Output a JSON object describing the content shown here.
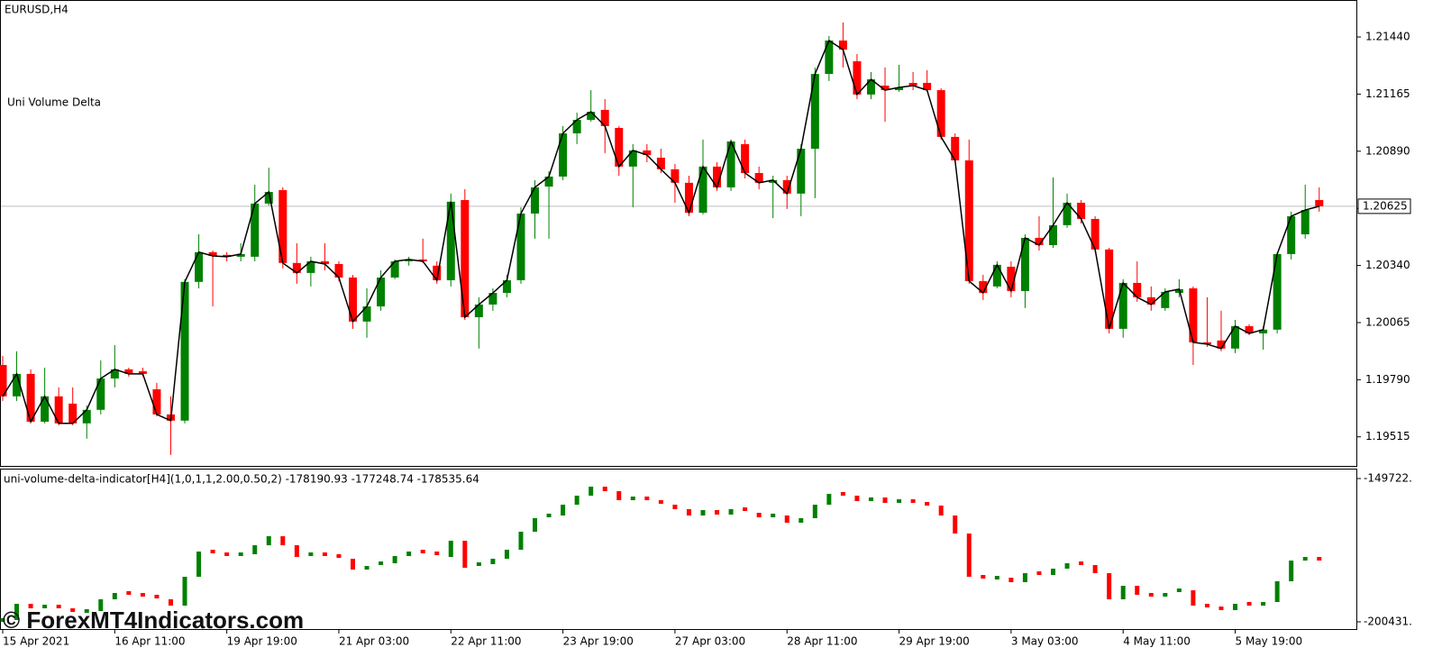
{
  "chart_data": [
    {
      "type": "candlestick",
      "title": "EURUSD,H4",
      "subtitle": "Uni Volume Delta",
      "categories": [
        "15 Apr 2021",
        null,
        null,
        null,
        null,
        null,
        null,
        null,
        "16 Apr 11:00",
        null,
        null,
        null,
        null,
        null,
        null,
        null,
        "19 Apr 19:00",
        null,
        null,
        null,
        null,
        null,
        null,
        null,
        "21 Apr 03:00",
        null,
        null,
        null,
        null,
        null,
        null,
        null,
        "22 Apr 11:00",
        null,
        null,
        null,
        null,
        null,
        null,
        null,
        "23 Apr 19:00",
        null,
        null,
        null,
        null,
        null,
        null,
        null,
        "27 Apr 03:00",
        null,
        null,
        null,
        null,
        null,
        null,
        null,
        "28 Apr 11:00",
        null,
        null,
        null,
        null,
        null,
        null,
        null,
        "29 Apr 19:00",
        null,
        null,
        null,
        null,
        null,
        null,
        null,
        "3 May 03:00",
        null,
        null,
        null,
        null,
        null,
        null,
        null,
        "4 May 11:00",
        null,
        null,
        null,
        null,
        null,
        null,
        null,
        "5 May 19:00",
        null,
        null,
        null,
        null,
        null,
        null
      ],
      "open": [
        1.19861,
        1.1971,
        1.19818,
        1.19588,
        1.1971,
        1.19675,
        1.1958,
        1.19645,
        1.19796,
        1.1984,
        1.19831,
        1.19744,
        1.19623,
        1.19593,
        1.20261,
        1.20404,
        1.20391,
        1.20382,
        1.20382,
        1.20638,
        1.20703,
        1.20352,
        1.20304,
        1.2036,
        1.20347,
        1.20282,
        1.2007,
        1.20143,
        1.20282,
        1.2036,
        1.20369,
        1.20339,
        1.20269,
        1.20655,
        1.20091,
        1.20152,
        1.20208,
        1.20269,
        1.2059,
        1.2072,
        1.20768,
        1.20976,
        1.21041,
        1.21089,
        1.21002,
        1.20816,
        1.20894,
        1.20859,
        1.20803,
        1.20738,
        1.20594,
        1.20816,
        1.20716,
        1.20924,
        1.20785,
        1.20738,
        1.20751,
        1.20686,
        1.20902,
        1.21262,
        1.21423,
        1.21323,
        1.21163,
        1.21206,
        1.21184,
        1.21219,
        1.21219,
        1.21184,
        1.20959,
        1.20846,
        1.20265,
        1.20239,
        1.20334,
        1.20217,
        1.20473,
        1.20438,
        1.20534,
        1.20642,
        1.20564,
        1.20417,
        1.20035,
        1.20256,
        1.20187,
        1.20135,
        1.20208,
        1.2023,
        1.1997,
        1.19979,
        1.1994,
        1.20048,
        1.20013,
        1.20031,
        1.20395,
        1.2049,
        1.20655
      ],
      "high": [
        1.19905,
        1.19927,
        1.1984,
        1.19848,
        1.19753,
        1.19753,
        1.19666,
        1.19883,
        1.19957,
        1.19848,
        1.19848,
        1.19775,
        1.1971,
        1.20274,
        1.2049,
        1.20412,
        1.20404,
        1.20447,
        1.20729,
        1.20811,
        1.20716,
        1.20447,
        1.20382,
        1.20447,
        1.2036,
        1.20295,
        1.2023,
        1.20317,
        1.20369,
        1.20382,
        1.20469,
        1.2036,
        1.20686,
        1.20707,
        1.20187,
        1.2023,
        1.20295,
        1.2062,
        1.20751,
        1.20794,
        1.21011,
        1.21076,
        1.21184,
        1.21141,
        1.21011,
        1.20924,
        1.20924,
        1.20902,
        1.20829,
        1.20772,
        1.20946,
        1.20837,
        1.20946,
        1.20946,
        1.20816,
        1.20772,
        1.20772,
        1.20924,
        1.21293,
        1.21445,
        1.2151,
        1.21358,
        1.21271,
        1.21293,
        1.21306,
        1.21271,
        1.2128,
        1.21193,
        1.20976,
        1.20946,
        1.20295,
        1.2036,
        1.2036,
        1.2049,
        1.20577,
        1.20764,
        1.20686,
        1.20655,
        1.20577,
        1.20425,
        1.20274,
        1.2036,
        1.20239,
        1.2023,
        1.20274,
        1.20239,
        1.20187,
        1.20122,
        1.20078,
        1.20057,
        1.20048,
        1.20404,
        1.20599,
        1.20729,
        1.20716
      ],
      "low": [
        1.19688,
        1.19688,
        1.1958,
        1.1958,
        1.19571,
        1.19571,
        1.19506,
        1.19623,
        1.19753,
        1.19805,
        1.19805,
        1.19614,
        1.19428,
        1.1958,
        1.2023,
        1.20143,
        1.2036,
        1.2036,
        1.2036,
        1.20629,
        1.20326,
        1.20252,
        1.20239,
        1.20317,
        1.20265,
        1.20035,
        1.19992,
        1.20122,
        1.20274,
        1.20339,
        1.20352,
        1.20252,
        1.20239,
        1.20078,
        1.1994,
        1.20122,
        1.20187,
        1.20252,
        1.20469,
        1.20469,
        1.20751,
        1.20924,
        1.21032,
        1.20881,
        1.20772,
        1.2062,
        1.20837,
        1.20785,
        1.20642,
        1.20577,
        1.20586,
        1.20699,
        1.20699,
        1.20759,
        1.20707,
        1.20568,
        1.20612,
        1.20577,
        1.20664,
        1.21228,
        1.21293,
        1.21141,
        1.21141,
        1.21032,
        1.21176,
        1.21184,
        1.21176,
        1.20946,
        1.20837,
        1.20252,
        1.20174,
        1.2023,
        1.20187,
        1.20135,
        1.20412,
        1.20425,
        1.20521,
        1.20542,
        1.20404,
        1.20013,
        1.19992,
        1.20165,
        1.20122,
        1.20122,
        1.20187,
        1.19861,
        1.19948,
        1.19927,
        1.19918,
        1.20005,
        1.19935,
        1.20013,
        1.20369,
        1.20469,
        1.20599
      ],
      "close": [
        1.1971,
        1.19818,
        1.19588,
        1.1971,
        1.1958,
        1.1958,
        1.19645,
        1.19796,
        1.1984,
        1.19818,
        1.19818,
        1.19623,
        1.19593,
        1.20261,
        1.20404,
        1.20386,
        1.20382,
        1.20395,
        1.20638,
        1.20694,
        1.20352,
        1.20304,
        1.2036,
        1.20347,
        1.20282,
        1.2007,
        1.20143,
        1.20282,
        1.2036,
        1.20369,
        1.2036,
        1.20269,
        1.20647,
        1.20091,
        1.20152,
        1.20208,
        1.20269,
        1.2059,
        1.20716,
        1.20768,
        1.20976,
        1.21041,
        1.2108,
        1.21011,
        1.20816,
        1.20894,
        1.20872,
        1.20803,
        1.20738,
        1.20594,
        1.20816,
        1.20716,
        1.20937,
        1.20785,
        1.20738,
        1.20751,
        1.20686,
        1.20902,
        1.21262,
        1.21423,
        1.21379,
        1.21163,
        1.21236,
        1.21184,
        1.21197,
        1.21206,
        1.21184,
        1.20959,
        1.20846,
        1.20265,
        1.20208,
        1.20343,
        1.20217,
        1.20473,
        1.20438,
        1.20534,
        1.20642,
        1.20564,
        1.20417,
        1.20035,
        1.20256,
        1.20187,
        1.20152,
        1.20213,
        1.20226,
        1.1997,
        1.19961,
        1.1994,
        1.20048,
        1.20013,
        1.20031,
        1.20395,
        1.20577,
        1.20607,
        1.20625
      ],
      "up_color": "#008000",
      "down_color": "#ff0000",
      "line_color": "#000000",
      "ylim": [
        1.19375,
        1.21618
      ],
      "yticks": [
        {
          "value": 1.2144,
          "label": "1.21440"
        },
        {
          "value": 1.21165,
          "label": "1.21165"
        },
        {
          "value": 1.2089,
          "label": "1.20890"
        },
        {
          "value": 1.20615,
          "label": null
        },
        {
          "value": 1.2034,
          "label": "1.20340"
        },
        {
          "value": 1.20065,
          "label": "1.20065"
        },
        {
          "value": 1.1979,
          "label": "1.19790"
        },
        {
          "value": 1.19515,
          "label": "1.19515"
        }
      ],
      "current_price": {
        "value": 1.20625,
        "label": "1.20625"
      }
    },
    {
      "type": "delta-candles",
      "title": "uni-volume-delta-indicator[H4](1,0,1,1,2.00,0.50,2) -178190.93 -177248.74 -178535.64",
      "values": [
        -199789,
        -194049,
        -195644,
        -195006,
        -196281,
        -197238,
        -196600,
        -192455,
        -190222,
        -190860,
        -191498,
        -192455,
        -194687,
        -184482,
        -175553,
        -176510,
        -177147,
        -176510,
        -173321,
        -170132,
        -173321,
        -177466,
        -176510,
        -177147,
        -178104,
        -181931,
        -180655,
        -179699,
        -177147,
        -175553,
        -176191,
        -177466,
        -171726,
        -181293,
        -180018,
        -178104,
        -174915,
        -168537,
        -163754,
        -162797,
        -158970,
        -155781,
        -152592,
        -154187,
        -157376,
        -156738,
        -158013,
        -158970,
        -160565,
        -162797,
        -160884,
        -162478,
        -160565,
        -161840,
        -163435,
        -162797,
        -165348,
        -163754,
        -158970,
        -155143,
        -155781,
        -157695,
        -156419,
        -158332,
        -157695,
        -158651,
        -159289,
        -162797,
        -169175,
        -184482,
        -185439,
        -184801,
        -186396,
        -183207,
        -183844,
        -181612,
        -179699,
        -180336,
        -183207,
        -192455,
        -187671,
        -190860,
        -191498,
        -190222,
        -189266,
        -194687,
        -195644,
        -196281,
        -194049,
        -194687,
        -193411,
        -186077,
        -178742,
        -178104,
        -178742
      ],
      "ylim": [
        -202982,
        -146214
      ],
      "yticks": [
        {
          "value": -149722,
          "label": "-149722."
        },
        {
          "value": -200431,
          "label": "-200431."
        }
      ]
    }
  ],
  "watermark": "© ForexMT4Indicators.com"
}
